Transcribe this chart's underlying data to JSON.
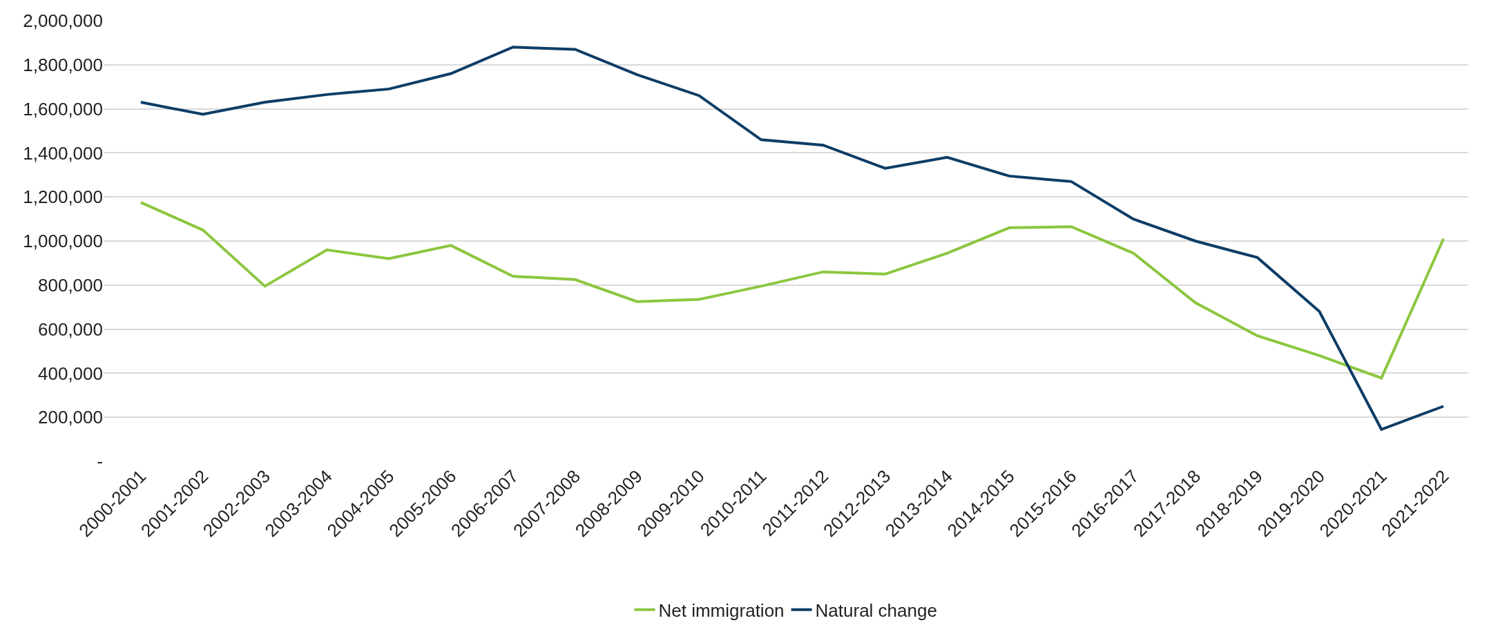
{
  "chart_data": {
    "type": "line",
    "categories": [
      "2000-2001",
      "2001-2002",
      "2002-2003",
      "2003-2004",
      "2004-2005",
      "2005-2006",
      "2006-2007",
      "2007-2008",
      "2008-2009",
      "2009-2010",
      "2010-2011",
      "2011-2012",
      "2012-2013",
      "2013-2014",
      "2014-2015",
      "2015-2016",
      "2016-2017",
      "2017-2018",
      "2018-2019",
      "2019-2020",
      "2020-2021",
      "2021-2022"
    ],
    "series": [
      {
        "name": "Net immigration",
        "color": "#8cc63f",
        "values": [
          1175000,
          1050000,
          795000,
          960000,
          920000,
          980000,
          840000,
          825000,
          725000,
          735000,
          795000,
          860000,
          850000,
          945000,
          1060000,
          1065000,
          945000,
          720000,
          570000,
          480000,
          378000,
          1010000
        ]
      },
      {
        "name": "Natural change",
        "color": "#0d3d66",
        "values": [
          1630000,
          1575000,
          1630000,
          1665000,
          1690000,
          1760000,
          1880000,
          1870000,
          1755000,
          1660000,
          1460000,
          1435000,
          1330000,
          1380000,
          1295000,
          1270000,
          1100000,
          1000000,
          925000,
          680000,
          145000,
          250000
        ]
      }
    ],
    "ylim": [
      0,
      2000000
    ],
    "yticks": [
      {
        "value": 0,
        "label": "-"
      },
      {
        "value": 200000,
        "label": "200,000"
      },
      {
        "value": 400000,
        "label": "400,000"
      },
      {
        "value": 600000,
        "label": "600,000"
      },
      {
        "value": 800000,
        "label": "800,000"
      },
      {
        "value": 1000000,
        "label": "1,000,000"
      },
      {
        "value": 1200000,
        "label": "1,200,000"
      },
      {
        "value": 1400000,
        "label": "1,400,000"
      },
      {
        "value": 1600000,
        "label": "1,600,000"
      },
      {
        "value": 1800000,
        "label": "1,800,000"
      },
      {
        "value": 2000000,
        "label": "2,000,000"
      }
    ],
    "grid": "y",
    "legend": "bottom",
    "marker": "none",
    "line_style": "solid"
  }
}
